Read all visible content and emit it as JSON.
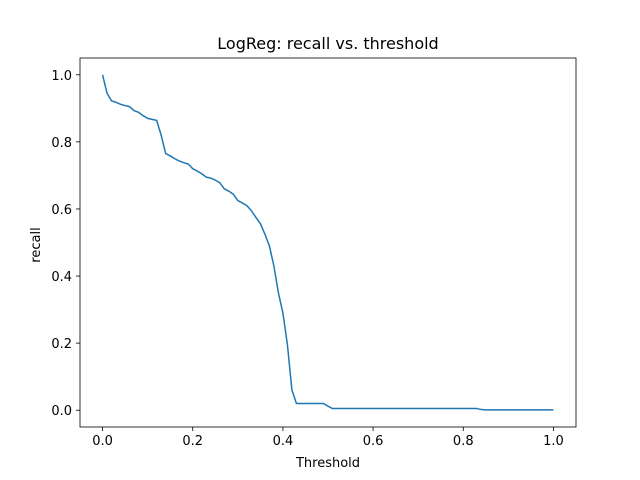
{
  "chart_data": {
    "type": "line",
    "title": "LogReg: recall vs. threshold",
    "xlabel": "Threshold",
    "ylabel": "recall",
    "xlim": [
      -0.05,
      1.05
    ],
    "ylim": [
      -0.05,
      1.05
    ],
    "xticks": [
      0.0,
      0.2,
      0.4,
      0.6,
      0.8,
      1.0
    ],
    "xtick_labels": [
      "0.0",
      "0.2",
      "0.4",
      "0.6",
      "0.8",
      "1.0"
    ],
    "yticks": [
      0.0,
      0.2,
      0.4,
      0.6,
      0.8,
      1.0
    ],
    "ytick_labels": [
      "0.0",
      "0.2",
      "0.4",
      "0.6",
      "0.8",
      "1.0"
    ],
    "grid": false,
    "series": [
      {
        "color": "#1f77b4",
        "x": [
          0.0,
          0.01,
          0.02,
          0.03,
          0.04,
          0.05,
          0.06,
          0.07,
          0.08,
          0.09,
          0.1,
          0.11,
          0.12,
          0.13,
          0.14,
          0.15,
          0.16,
          0.17,
          0.18,
          0.19,
          0.2,
          0.21,
          0.22,
          0.23,
          0.24,
          0.25,
          0.26,
          0.27,
          0.28,
          0.29,
          0.3,
          0.31,
          0.32,
          0.33,
          0.34,
          0.35,
          0.36,
          0.37,
          0.38,
          0.39,
          0.4,
          0.41,
          0.42,
          0.43,
          0.44,
          0.45,
          0.46,
          0.47,
          0.48,
          0.49,
          0.5,
          0.51,
          0.52,
          0.55,
          0.6,
          0.65,
          0.7,
          0.75,
          0.8,
          0.83,
          0.84,
          0.85,
          0.9,
          0.95,
          1.0
        ],
        "y": [
          1.0,
          0.945,
          0.922,
          0.918,
          0.912,
          0.908,
          0.905,
          0.893,
          0.888,
          0.878,
          0.87,
          0.867,
          0.864,
          0.82,
          0.765,
          0.758,
          0.75,
          0.743,
          0.738,
          0.734,
          0.72,
          0.713,
          0.705,
          0.695,
          0.692,
          0.686,
          0.678,
          0.66,
          0.653,
          0.644,
          0.625,
          0.618,
          0.61,
          0.595,
          0.575,
          0.556,
          0.525,
          0.49,
          0.43,
          0.35,
          0.29,
          0.195,
          0.06,
          0.02,
          0.02,
          0.02,
          0.02,
          0.02,
          0.02,
          0.02,
          0.012,
          0.005,
          0.005,
          0.005,
          0.005,
          0.005,
          0.005,
          0.005,
          0.005,
          0.005,
          0.002,
          0.001,
          0.001,
          0.001,
          0.001
        ]
      }
    ]
  }
}
